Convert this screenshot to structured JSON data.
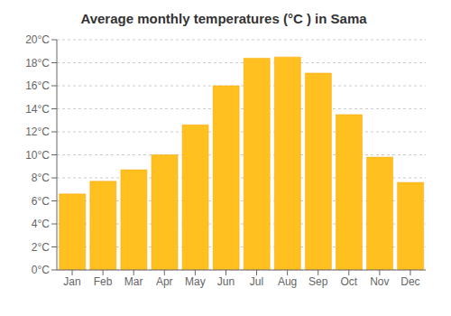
{
  "chart_data": {
    "type": "bar",
    "title": "Average monthly temperatures (°C ) in Sama",
    "categories": [
      "Jan",
      "Feb",
      "Mar",
      "Apr",
      "May",
      "Jun",
      "Jul",
      "Aug",
      "Sep",
      "Oct",
      "Nov",
      "Dec"
    ],
    "values": [
      6.6,
      7.7,
      8.7,
      10.0,
      12.6,
      16.0,
      18.4,
      18.5,
      17.1,
      13.5,
      9.8,
      7.6
    ],
    "color": "#FFC020",
    "ylim": [
      0,
      20
    ],
    "yticks": [
      {
        "value": 0,
        "label": "0°C"
      },
      {
        "value": 2,
        "label": "2°C"
      },
      {
        "value": 4,
        "label": "4°C"
      },
      {
        "value": 6,
        "label": "6°C"
      },
      {
        "value": 8,
        "label": "8°C"
      },
      {
        "value": 10,
        "label": "10°C"
      },
      {
        "value": 12,
        "label": "12°C"
      },
      {
        "value": 14,
        "label": "14°C"
      },
      {
        "value": 16,
        "label": "16°C"
      },
      {
        "value": 18,
        "label": "18°C"
      },
      {
        "value": 20,
        "label": "20°C"
      }
    ],
    "grid": true
  }
}
